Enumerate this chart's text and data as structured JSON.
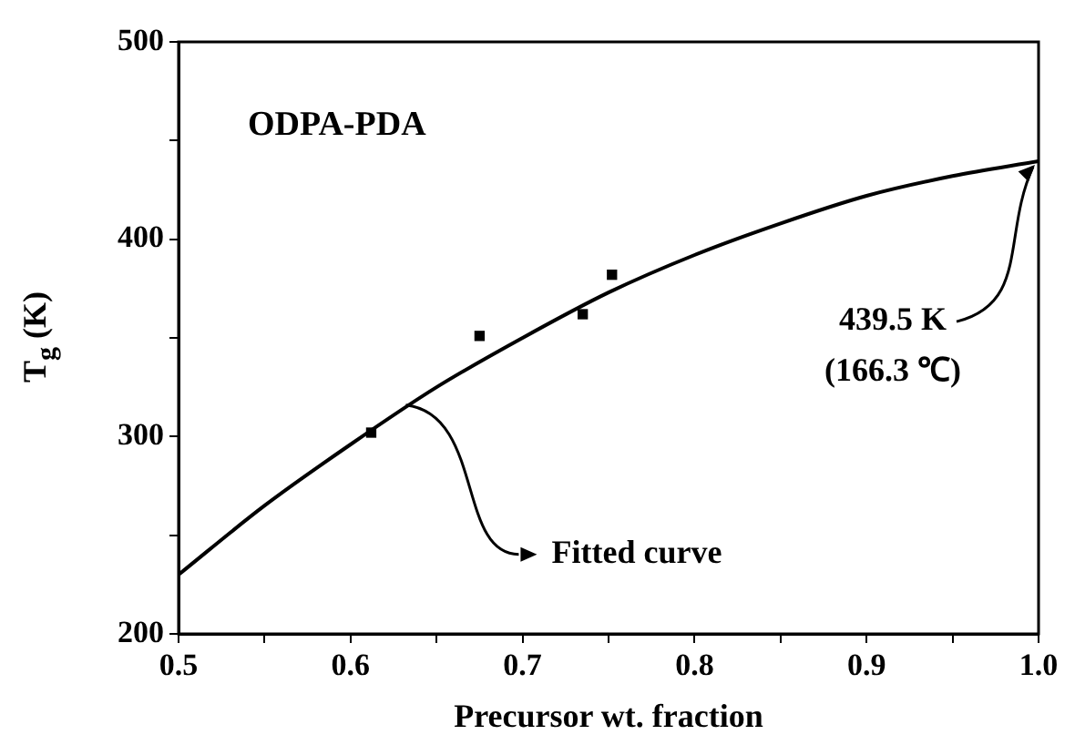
{
  "chart_data": {
    "type": "scatter",
    "xlabel": "Precursor wt. fraction",
    "ylabel": "T$_{g}$ (K)",
    "xlim": [
      0.5,
      1.0
    ],
    "ylim": [
      200,
      500
    ],
    "xticks": [
      0.5,
      {
        "value": 0.55,
        "label": null
      },
      0.6,
      {
        "value": 0.65,
        "label": null
      },
      0.7,
      {
        "value": 0.75,
        "label": null
      },
      0.8,
      {
        "value": 0.85,
        "label": null
      },
      0.9,
      {
        "value": 0.95,
        "label": null
      },
      {
        "value": 1.0,
        "label": "1.0"
      }
    ],
    "yticks": [
      200,
      {
        "value": 250,
        "label": null
      },
      300,
      {
        "value": 350,
        "label": null
      },
      400,
      {
        "value": 450,
        "label": null
      },
      500
    ],
    "grid": false,
    "legend": false,
    "marker": "square",
    "series": [
      {
        "color": "#000000",
        "x": [
          0.612,
          0.675,
          0.735,
          0.752
        ],
        "values": [
          302,
          351,
          362,
          382
        ]
      },
      {
        "type": "line",
        "color": "#000000",
        "marker": "none",
        "x": [
          0.5,
          0.55,
          0.6,
          0.65,
          0.7,
          0.75,
          0.8,
          0.85,
          0.9,
          0.95,
          1.0
        ],
        "values": [
          230,
          265,
          296,
          325,
          350,
          373,
          392,
          408,
          422,
          432,
          439.5
        ]
      }
    ],
    "annotations": [
      "ODPA-PDA",
      {
        "text": "Fitted curve",
        "x": 0.63,
        "y": 316
      },
      {
        "text": "439.5 K\n(166.3 ℃)",
        "x": 1.0,
        "y": 439.5
      }
    ]
  }
}
